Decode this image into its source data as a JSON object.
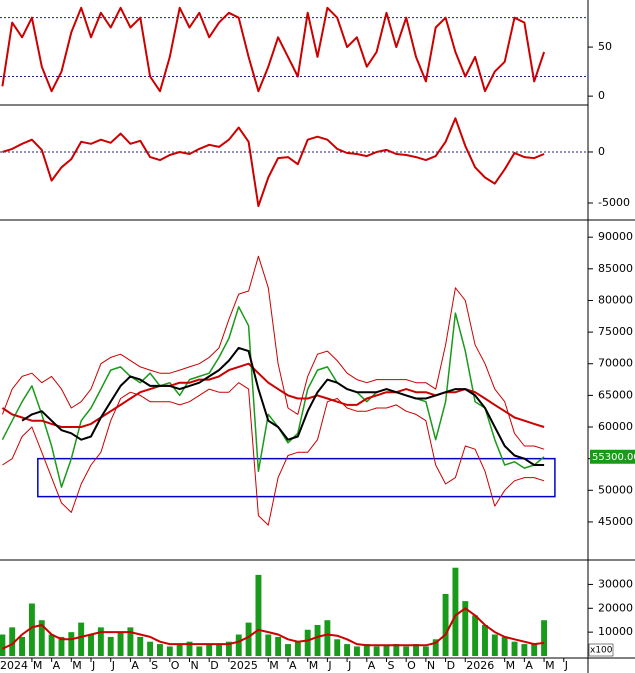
{
  "chart_data": [
    {
      "type": "line",
      "x": [
        0.5,
        1,
        1.5,
        2,
        2.5,
        3,
        3.5,
        4,
        4.5,
        5,
        5.5,
        6,
        6.5,
        7,
        7.5,
        8,
        8.5,
        9,
        9.5,
        10,
        10.5,
        11,
        11.5,
        12,
        12.5,
        13,
        13.5,
        14,
        14.5,
        15,
        15.5,
        16,
        16.5,
        17,
        17.5,
        18,
        18.5,
        19,
        19.5,
        20,
        20.5,
        21,
        21.5,
        22,
        22.5,
        23,
        23.5,
        24,
        24.5,
        25,
        25.5,
        26,
        26.5,
        27,
        27.5,
        28
      ],
      "xlim": [
        0.38,
        30.23
      ],
      "ylim": [
        -7,
        98
      ],
      "yticks": [
        0,
        50
      ],
      "hlines": [
        20,
        80
      ],
      "hline_color": "#1a237e",
      "series": [
        {
          "color": "#cc0000",
          "width": 2,
          "values": [
            10,
            75,
            60,
            80,
            30,
            5,
            25,
            65,
            90,
            60,
            85,
            70,
            90,
            70,
            80,
            20,
            5,
            40,
            90,
            70,
            85,
            60,
            75,
            85,
            80,
            40,
            5,
            30,
            60,
            40,
            20,
            85,
            40,
            90,
            80,
            50,
            60,
            30,
            45,
            85,
            50,
            80,
            40,
            15,
            70,
            80,
            45,
            20,
            40,
            5,
            25,
            35,
            80,
            75,
            15,
            45
          ]
        }
      ]
    },
    {
      "type": "line",
      "x": [
        0.5,
        1,
        1.5,
        2,
        2.5,
        3,
        3.5,
        4,
        4.5,
        5,
        5.5,
        6,
        6.5,
        7,
        7.5,
        8,
        8.5,
        9,
        9.5,
        10,
        10.5,
        11,
        11.5,
        12,
        12.5,
        13,
        13.5,
        14,
        14.5,
        15,
        15.5,
        16,
        16.5,
        17,
        17.5,
        18,
        18.5,
        19,
        19.5,
        20,
        20.5,
        21,
        21.5,
        22,
        22.5,
        23,
        23.5,
        24,
        24.5,
        25,
        25.5,
        26,
        26.5,
        27,
        27.5,
        28
      ],
      "xlim": [
        0.38,
        30.23
      ],
      "ylim": [
        -6470,
        4310
      ],
      "yticks": [
        0,
        -5000
      ],
      "hlines": [
        0
      ],
      "hline_color": "#1a237e",
      "series": [
        {
          "color": "#cc0000",
          "width": 2,
          "values": [
            0,
            300,
            800,
            1200,
            200,
            -2800,
            -1500,
            -700,
            1000,
            800,
            1200,
            900,
            1800,
            800,
            1100,
            -500,
            -800,
            -300,
            0,
            -200,
            300,
            700,
            500,
            1200,
            2400,
            1000,
            -5300,
            -2500,
            -600,
            -500,
            -1200,
            1200,
            1500,
            1200,
            300,
            -100,
            -200,
            -400,
            0,
            200,
            -200,
            -300,
            -500,
            -800,
            -400,
            1000,
            3300,
            600,
            -1500,
            -2500,
            -3100,
            -1700,
            -100,
            -500,
            -600,
            -200
          ]
        }
      ]
    },
    {
      "type": "line",
      "x": [
        0.5,
        1,
        1.5,
        2,
        2.5,
        3,
        3.5,
        4,
        4.5,
        5,
        5.5,
        6,
        6.5,
        7,
        7.5,
        8,
        8.5,
        9,
        9.5,
        10,
        10.5,
        11,
        11.5,
        12,
        12.5,
        13,
        13.5,
        14,
        14.5,
        15,
        15.5,
        16,
        16.5,
        17,
        17.5,
        18,
        18.5,
        19,
        19.5,
        20,
        20.5,
        21,
        21.5,
        22,
        22.5,
        23,
        23.5,
        24,
        24.5,
        25,
        25.5,
        26,
        26.5,
        27,
        27.5,
        28
      ],
      "xlim": [
        0.38,
        30.23
      ],
      "ylim": [
        39300,
        92400
      ],
      "yticks": [
        45000,
        50000,
        55000,
        60000,
        65000,
        70000,
        75000,
        80000,
        85000,
        90000
      ],
      "series": [
        {
          "color": "#cc0000",
          "width": 1,
          "values": [
            62000,
            66000,
            68000,
            68500,
            67000,
            68000,
            66000,
            63000,
            64000,
            66000,
            70000,
            71000,
            71500,
            70500,
            69500,
            69000,
            68500,
            68500,
            69000,
            69500,
            70000,
            71000,
            72500,
            77000,
            81000,
            81500,
            87000,
            82000,
            70000,
            63000,
            62000,
            68000,
            71500,
            72000,
            70500,
            68500,
            67500,
            67000,
            67500,
            67500,
            67500,
            67500,
            67000,
            67000,
            66000,
            73000,
            82000,
            80000,
            73000,
            70000,
            66000,
            64000,
            59000,
            57000,
            57000,
            56500
          ]
        },
        {
          "color": "#cc0000",
          "width": 1,
          "values": [
            54000,
            55000,
            58500,
            60000,
            56000,
            52000,
            48000,
            46500,
            51000,
            54000,
            56000,
            61000,
            64500,
            65500,
            65000,
            64000,
            64000,
            64000,
            63500,
            64000,
            65000,
            66000,
            65500,
            65500,
            67000,
            66000,
            46000,
            44500,
            52000,
            55500,
            56000,
            56000,
            58000,
            64000,
            64500,
            63000,
            62500,
            62500,
            63000,
            63000,
            63500,
            62500,
            62000,
            61000,
            54000,
            51000,
            52000,
            57000,
            56500,
            53000,
            47500,
            50000,
            51500,
            52000,
            52000,
            51500
          ]
        },
        {
          "color": "#1a9a1a",
          "width": 1.5,
          "values": [
            58000,
            61000,
            64000,
            66500,
            62000,
            57000,
            50500,
            55000,
            61000,
            63000,
            66000,
            69000,
            69500,
            68000,
            67000,
            68500,
            66500,
            67000,
            65000,
            67500,
            68000,
            68500,
            71000,
            74000,
            79000,
            76000,
            53000,
            62000,
            60000,
            57500,
            59000,
            66000,
            69000,
            69500,
            67000,
            66000,
            65500,
            64000,
            65500,
            66000,
            65500,
            65000,
            64500,
            64000,
            58000,
            64000,
            78000,
            72000,
            64000,
            63000,
            58000,
            54000,
            54500,
            53500,
            54000,
            55300
          ]
        },
        {
          "color": "#cc0000",
          "width": 2,
          "values": [
            63000,
            62000,
            61500,
            61000,
            61000,
            60500,
            60000,
            60000,
            60000,
            60500,
            61500,
            62500,
            63500,
            64500,
            65500,
            66000,
            66500,
            66500,
            67000,
            67000,
            67500,
            67500,
            68000,
            69000,
            69500,
            70000,
            68500,
            67000,
            66000,
            65000,
            64500,
            64500,
            65000,
            64500,
            64000,
            63500,
            63500,
            64500,
            65000,
            65500,
            65500,
            66000,
            65500,
            65500,
            65000,
            65500,
            65500,
            66000,
            65500,
            64500,
            63500,
            62500,
            61500,
            61000,
            60500,
            60000
          ]
        },
        {
          "color": "#000000",
          "width": 2,
          "values": [
            null,
            null,
            61000,
            62000,
            62500,
            61000,
            59500,
            59000,
            58000,
            58500,
            61500,
            64000,
            66500,
            68000,
            67500,
            66500,
            66500,
            66500,
            66000,
            66500,
            67000,
            68000,
            69000,
            70500,
            72500,
            72000,
            66000,
            61000,
            60000,
            58000,
            58500,
            62500,
            65500,
            67500,
            67000,
            66000,
            65500,
            65500,
            65500,
            66000,
            65500,
            65000,
            64500,
            64500,
            65000,
            65500,
            66000,
            66000,
            65000,
            63000,
            60000,
            57000,
            55500,
            55000,
            54000,
            54000
          ]
        }
      ],
      "box": {
        "x": [
          2.3,
          28.55
        ],
        "y": [
          49000,
          55000
        ],
        "color": "#0000cc"
      },
      "last": {
        "value": 55300,
        "label": "55300.00",
        "color": "#1a9a1a"
      }
    },
    {
      "type": "bar",
      "x": [
        0.5,
        1,
        1.5,
        2,
        2.5,
        3,
        3.5,
        4,
        4.5,
        5,
        5.5,
        6,
        6.5,
        7,
        7.5,
        8,
        8.5,
        9,
        9.5,
        10,
        10.5,
        11,
        11.5,
        12,
        12.5,
        13,
        13.5,
        14,
        14.5,
        15,
        15.5,
        16,
        16.5,
        17,
        17.5,
        18,
        18.5,
        19,
        19.5,
        20,
        20.5,
        21,
        21.5,
        22,
        22.5,
        23,
        23.5,
        24,
        24.5,
        25,
        25.5,
        26,
        26.5,
        27,
        27.5,
        28
      ],
      "xlim": [
        0.38,
        30.23
      ],
      "ylim": [
        0,
        39400
      ],
      "yticks": [
        10000,
        20000,
        30000
      ],
      "unit": "x100",
      "xticks": [
        {
          "value": 0,
          "label": "2024"
        },
        {
          "value": 2,
          "label": "M"
        },
        {
          "value": 3,
          "label": "A"
        },
        {
          "value": 4,
          "label": "M"
        },
        {
          "value": 5,
          "label": "J"
        },
        {
          "value": 6,
          "label": "J"
        },
        {
          "value": 7,
          "label": "A"
        },
        {
          "value": 8,
          "label": "S"
        },
        {
          "value": 9,
          "label": "O"
        },
        {
          "value": 10,
          "label": "N"
        },
        {
          "value": 11,
          "label": "D"
        },
        {
          "value": 12,
          "label": "2025"
        },
        {
          "value": 14,
          "label": "M"
        },
        {
          "value": 15,
          "label": "A"
        },
        {
          "value": 16,
          "label": "M"
        },
        {
          "value": 17,
          "label": "J"
        },
        {
          "value": 18,
          "label": "J"
        },
        {
          "value": 19,
          "label": "A"
        },
        {
          "value": 20,
          "label": "S"
        },
        {
          "value": 21,
          "label": "O"
        },
        {
          "value": 22,
          "label": "N"
        },
        {
          "value": 23,
          "label": "D"
        },
        {
          "value": 24,
          "label": "2026"
        },
        {
          "value": 26,
          "label": "M"
        },
        {
          "value": 27,
          "label": "A"
        },
        {
          "value": 28,
          "label": "M"
        },
        {
          "value": 29,
          "label": "J"
        }
      ],
      "series": [
        {
          "type": "bar",
          "color": "#1a9a1a",
          "values": [
            9000,
            12000,
            8000,
            22000,
            15000,
            9000,
            8000,
            10000,
            14000,
            9000,
            12000,
            8000,
            10000,
            12000,
            8000,
            6000,
            5000,
            4000,
            5000,
            6000,
            4000,
            5000,
            5000,
            6000,
            9000,
            14000,
            34000,
            9000,
            8000,
            5000,
            6000,
            11000,
            13000,
            15000,
            7000,
            5000,
            4000,
            5000,
            4000,
            4500,
            5000,
            4000,
            5000,
            4000,
            7000,
            26000,
            37000,
            23000,
            17000,
            13000,
            9000,
            8000,
            6000,
            5000,
            5000,
            15000
          ]
        },
        {
          "type": "line",
          "color": "#cc0000",
          "width": 2,
          "values": [
            3000,
            5000,
            9000,
            12000,
            13000,
            9000,
            7000,
            7000,
            8000,
            9000,
            10000,
            10000,
            10000,
            10000,
            9000,
            8000,
            6000,
            5000,
            5000,
            5000,
            5000,
            5000,
            5000,
            5000,
            6000,
            8000,
            11000,
            10000,
            9000,
            7000,
            6000,
            6500,
            8000,
            9000,
            8500,
            7000,
            5000,
            4500,
            4500,
            4500,
            4500,
            4500,
            4500,
            4500,
            5500,
            9000,
            17000,
            20000,
            17000,
            13000,
            10000,
            8000,
            7000,
            6000,
            5000,
            5500
          ]
        }
      ]
    }
  ]
}
